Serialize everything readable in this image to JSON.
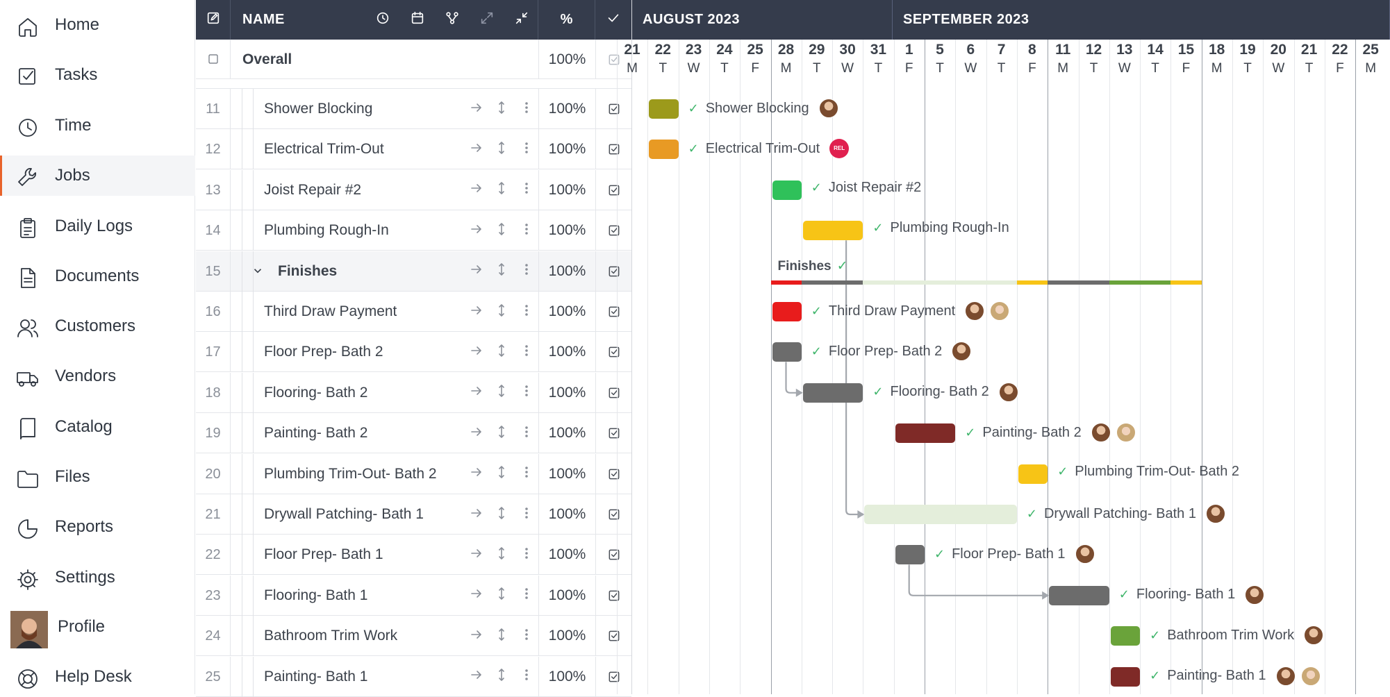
{
  "sidebar": {
    "items": [
      {
        "label": "Home",
        "icon": "home-icon"
      },
      {
        "label": "Tasks",
        "icon": "checkbox-icon"
      },
      {
        "label": "Time",
        "icon": "clock-icon"
      },
      {
        "label": "Jobs",
        "icon": "wrench-icon",
        "active": true
      },
      {
        "label": "Daily Logs",
        "icon": "clipboard-icon"
      },
      {
        "label": "Documents",
        "icon": "document-icon"
      },
      {
        "label": "Customers",
        "icon": "users-icon"
      },
      {
        "label": "Vendors",
        "icon": "truck-icon"
      },
      {
        "label": "Catalog",
        "icon": "book-icon"
      },
      {
        "label": "Files",
        "icon": "folder-icon"
      },
      {
        "label": "Reports",
        "icon": "pie-chart-icon"
      },
      {
        "label": "Settings",
        "icon": "gear-icon"
      },
      {
        "label": "Profile",
        "icon": "avatar"
      },
      {
        "label": "Help Desk",
        "icon": "lifebuoy-icon"
      }
    ],
    "accent_color": "#e8632b"
  },
  "grid": {
    "header": {
      "name_label": "NAME",
      "percent_label": "%"
    },
    "overall": {
      "name": "Overall",
      "percent": "100%"
    },
    "rows": [
      {
        "num": "11",
        "name": "Shower Blocking",
        "percent": "100%"
      },
      {
        "num": "12",
        "name": "Electrical Trim-Out",
        "percent": "100%"
      },
      {
        "num": "13",
        "name": "Joist Repair #2",
        "percent": "100%"
      },
      {
        "num": "14",
        "name": "Plumbing Rough-In",
        "percent": "100%"
      },
      {
        "num": "15",
        "name": "Finishes",
        "percent": "100%",
        "group": true
      },
      {
        "num": "16",
        "name": "Third Draw Payment",
        "percent": "100%"
      },
      {
        "num": "17",
        "name": "Floor Prep- Bath 2",
        "percent": "100%"
      },
      {
        "num": "18",
        "name": "Flooring- Bath 2",
        "percent": "100%"
      },
      {
        "num": "19",
        "name": "Painting- Bath 2",
        "percent": "100%"
      },
      {
        "num": "20",
        "name": "Plumbing Trim-Out- Bath 2",
        "percent": "100%"
      },
      {
        "num": "21",
        "name": "Drywall Patching- Bath 1",
        "percent": "100%"
      },
      {
        "num": "22",
        "name": "Floor Prep- Bath 1",
        "percent": "100%"
      },
      {
        "num": "23",
        "name": "Flooring- Bath 1",
        "percent": "100%"
      },
      {
        "num": "24",
        "name": "Bathroom Trim Work",
        "percent": "100%"
      },
      {
        "num": "25",
        "name": "Painting- Bath 1",
        "percent": "100%"
      }
    ]
  },
  "gantt": {
    "months": [
      {
        "label": "AUGUST 2023",
        "first_day": "2023-08-21"
      },
      {
        "label": "SEPTEMBER 2023",
        "first_day": "2023-09-01"
      }
    ],
    "days": [
      {
        "d": "21",
        "w": "M",
        "week": false
      },
      {
        "d": "22",
        "w": "T",
        "week": false
      },
      {
        "d": "23",
        "w": "W",
        "week": false
      },
      {
        "d": "24",
        "w": "T",
        "week": false
      },
      {
        "d": "25",
        "w": "F",
        "week": false
      },
      {
        "d": "28",
        "w": "M",
        "week": true
      },
      {
        "d": "29",
        "w": "T",
        "week": false
      },
      {
        "d": "30",
        "w": "W",
        "week": false
      },
      {
        "d": "31",
        "w": "T",
        "week": false
      },
      {
        "d": "1",
        "w": "F",
        "week": false
      },
      {
        "d": "5",
        "w": "T",
        "week": true
      },
      {
        "d": "6",
        "w": "W",
        "week": false
      },
      {
        "d": "7",
        "w": "T",
        "week": false
      },
      {
        "d": "8",
        "w": "F",
        "week": false
      },
      {
        "d": "11",
        "w": "M",
        "week": true
      },
      {
        "d": "12",
        "w": "T",
        "week": false
      },
      {
        "d": "13",
        "w": "W",
        "week": false
      },
      {
        "d": "14",
        "w": "T",
        "week": false
      },
      {
        "d": "15",
        "w": "F",
        "week": false
      },
      {
        "d": "18",
        "w": "M",
        "week": true
      },
      {
        "d": "19",
        "w": "T",
        "week": false
      },
      {
        "d": "20",
        "w": "W",
        "week": false
      },
      {
        "d": "21",
        "w": "T",
        "week": false
      },
      {
        "d": "22",
        "w": "F",
        "week": false
      },
      {
        "d": "25",
        "w": "M",
        "week": true
      }
    ],
    "rel_badge": "REL",
    "tasks": [
      {
        "row": 0,
        "label": "Shower Blocking",
        "start": 1,
        "span": 1,
        "color": "#9c9a1b",
        "avatars": [
          "m"
        ]
      },
      {
        "row": 1,
        "label": "Electrical Trim-Out",
        "start": 1,
        "span": 1,
        "color": "#e89a24",
        "rel": true
      },
      {
        "row": 2,
        "label": "Joist Repair #2",
        "start": 5,
        "span": 1,
        "color": "#2fc15a",
        "avatars": []
      },
      {
        "row": 3,
        "label": "Plumbing Rough-In",
        "start": 6,
        "span": 2,
        "color": "#f7c416",
        "avatars": []
      },
      {
        "row": 5,
        "label": "Third Draw Payment",
        "start": 5,
        "span": 1,
        "color": "#e81c1c",
        "avatars": [
          "m",
          "f"
        ]
      },
      {
        "row": 6,
        "label": "Floor Prep- Bath 2",
        "start": 5,
        "span": 1,
        "color": "#6c6c6c",
        "avatars": [
          "m"
        ]
      },
      {
        "row": 7,
        "label": "Flooring- Bath 2",
        "start": 6,
        "span": 2,
        "color": "#6c6c6c",
        "avatars": [
          "m"
        ]
      },
      {
        "row": 8,
        "label": "Painting- Bath 2",
        "start": 9,
        "span": 2,
        "color": "#7f2a27",
        "avatars": [
          "m",
          "f"
        ]
      },
      {
        "row": 9,
        "label": "Plumbing Trim-Out- Bath 2",
        "start": 13,
        "span": 1,
        "color": "#f7c416",
        "avatars": []
      },
      {
        "row": 10,
        "label": "Drywall Patching- Bath 1",
        "start": 8,
        "span": 5,
        "color": "#e4eedb",
        "avatars": [
          "m"
        ]
      },
      {
        "row": 11,
        "label": "Floor Prep- Bath 1",
        "start": 9,
        "span": 1,
        "color": "#6c6c6c",
        "avatars": [
          "m"
        ]
      },
      {
        "row": 12,
        "label": "Flooring- Bath 1",
        "start": 14,
        "span": 2,
        "color": "#6c6c6c",
        "avatars": [
          "m"
        ]
      },
      {
        "row": 13,
        "label": "Bathroom Trim Work",
        "start": 16,
        "span": 1,
        "color": "#6aa33a",
        "avatars": [
          "m"
        ]
      },
      {
        "row": 14,
        "label": "Painting- Bath 1",
        "start": 16,
        "span": 1,
        "color": "#7f2a27",
        "avatars": [
          "m",
          "f"
        ]
      }
    ],
    "finishes": {
      "label": "Finishes",
      "segments": [
        {
          "start": 5,
          "span": 1,
          "color": "#e81c1c"
        },
        {
          "start": 6,
          "span": 2,
          "color": "#6c6c6c"
        },
        {
          "start": 8,
          "span": 5,
          "color": "#e4eedb"
        },
        {
          "start": 13,
          "span": 1,
          "color": "#f7c416"
        },
        {
          "start": 14,
          "span": 2,
          "color": "#6c6c6c"
        },
        {
          "start": 16,
          "span": 2,
          "color": "#6aa33a"
        },
        {
          "start": 18,
          "span": 1,
          "color": "#f7c416"
        }
      ]
    }
  }
}
